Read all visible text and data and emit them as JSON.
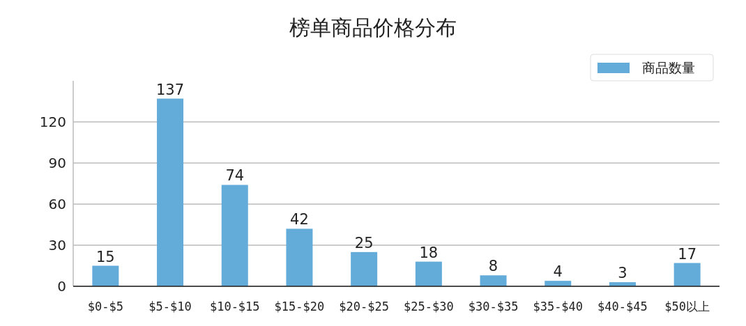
{
  "chart_data": {
    "type": "bar",
    "title": "榜单商品价格分布",
    "categories": [
      "$0-$5",
      "$5-$10",
      "$10-$15",
      "$15-$20",
      "$20-$25",
      "$25-$30",
      "$30-$35",
      "$35-$40",
      "$40-$45",
      "$50以上"
    ],
    "series": [
      {
        "name": "商品数量",
        "color": "#63acd9",
        "values": [
          15,
          137,
          74,
          42,
          25,
          18,
          8,
          4,
          3,
          17
        ]
      }
    ],
    "ylim": [
      0,
      150
    ],
    "yticks": [
      0,
      30,
      60,
      90,
      120
    ],
    "grid": "y",
    "legend": "top right",
    "data_labels": true
  }
}
